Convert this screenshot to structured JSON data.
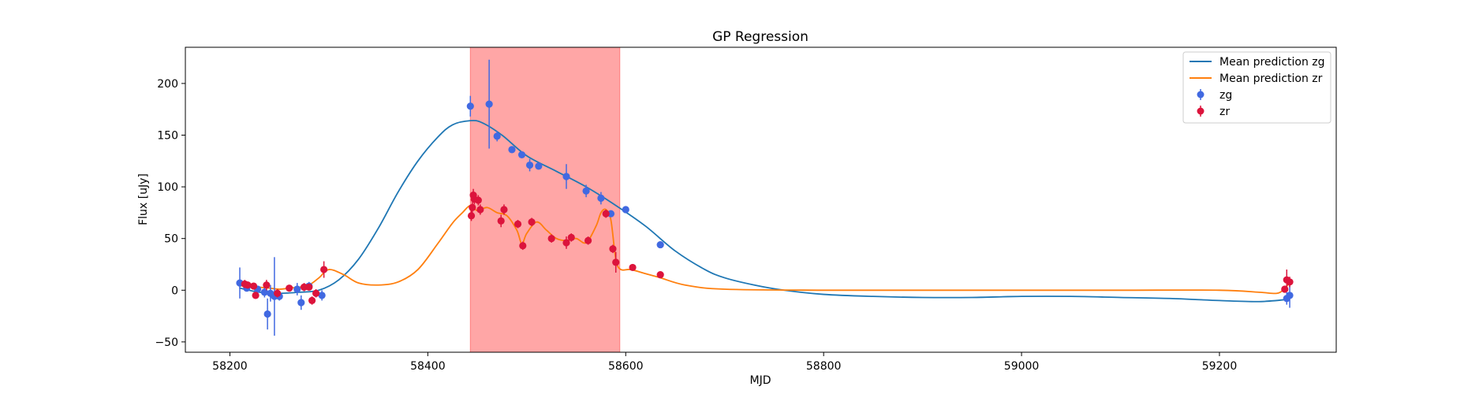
{
  "chart_data": {
    "type": "scatter",
    "title": "GP Regression",
    "xlabel": "MJD",
    "ylabel": "Flux [uJy]",
    "xlim": [
      58155,
      59318
    ],
    "ylim": [
      -60,
      235
    ],
    "xticks": [
      58200,
      58400,
      58600,
      58800,
      59000,
      59200
    ],
    "yticks": [
      -50,
      0,
      50,
      100,
      150,
      200
    ],
    "grid": false,
    "legend_position": "top-right",
    "shaded_region": {
      "x_start": 58443,
      "x_end": 58594,
      "color": "#ffa6a6"
    },
    "legend": {
      "mean_zg": "Mean prediction zg",
      "mean_zr": "Mean prediction zr",
      "zg": "zg",
      "zr": "zr"
    },
    "series": [
      {
        "name": "Mean prediction zg",
        "kind": "line",
        "color": "#1f77b4",
        "x": [
          58210,
          58230,
          58250,
          58270,
          58290,
          58310,
          58330,
          58350,
          58370,
          58390,
          58410,
          58425,
          58443,
          58455,
          58475,
          58500,
          58530,
          58560,
          58590,
          58620,
          58650,
          58680,
          58700,
          58730,
          58760,
          58800,
          58850,
          58900,
          58950,
          59000,
          59050,
          59100,
          59150,
          59200,
          59240,
          59268
        ],
        "y": [
          2,
          -2,
          -3,
          -2,
          0,
          10,
          30,
          60,
          95,
          125,
          148,
          160,
          164,
          162,
          150,
          130,
          115,
          100,
          82,
          62,
          38,
          20,
          12,
          5,
          0,
          -4,
          -6,
          -7,
          -7,
          -6,
          -6,
          -7,
          -8,
          -10,
          -11,
          -9
        ]
      },
      {
        "name": "Mean prediction zr",
        "kind": "line",
        "color": "#ff7f0e",
        "x": [
          58210,
          58220,
          58230,
          58240,
          58250,
          58260,
          58270,
          58280,
          58290,
          58300,
          58315,
          58330,
          58350,
          58370,
          58390,
          58410,
          58425,
          58435,
          58443,
          58450,
          58460,
          58470,
          58480,
          58490,
          58495,
          58500,
          58510,
          58520,
          58530,
          58540,
          58550,
          58560,
          58570,
          58575,
          58580,
          58585,
          58590,
          58595,
          58605,
          58620,
          58635,
          58660,
          58700,
          58800,
          58900,
          59000,
          59100,
          59200,
          59240,
          59258,
          59265,
          59270
        ],
        "y": [
          4,
          5,
          3,
          2,
          1,
          2,
          3,
          5,
          12,
          20,
          15,
          7,
          5,
          8,
          20,
          45,
          65,
          75,
          82,
          77,
          80,
          75,
          72,
          58,
          45,
          55,
          66,
          58,
          50,
          48,
          50,
          46,
          62,
          75,
          78,
          68,
          30,
          20,
          20,
          16,
          12,
          5,
          1,
          0,
          0,
          0,
          0,
          0,
          -2,
          -3,
          1,
          6
        ]
      },
      {
        "name": "zg",
        "kind": "points",
        "color": "#4169e1",
        "x": [
          58210,
          58217,
          58228,
          58235,
          58238,
          58241,
          58245,
          58250,
          58268,
          58272,
          58280,
          58293,
          58443,
          58462,
          58470,
          58485,
          58495,
          58503,
          58512,
          58540,
          58560,
          58575,
          58585,
          58600,
          58635,
          59268,
          59271
        ],
        "y": [
          7,
          2,
          1,
          -2,
          -23,
          -3,
          -6,
          -6,
          1,
          -12,
          4,
          -5,
          178,
          180,
          149,
          136,
          131,
          121,
          120,
          110,
          96,
          89,
          74,
          78,
          44,
          -8,
          -5
        ],
        "yerr": [
          15,
          3,
          3,
          5,
          15,
          8,
          38,
          4,
          6,
          7,
          4,
          5,
          10,
          43,
          5,
          3,
          3,
          6,
          3,
          12,
          6,
          6,
          3,
          3,
          3,
          6,
          12
        ]
      },
      {
        "name": "zr",
        "kind": "points",
        "color": "#dc143c",
        "x": [
          58215,
          58218,
          58224,
          58226,
          58237,
          58248,
          58260,
          58275,
          58280,
          58283,
          58287,
          58295,
          58444,
          58445,
          58446,
          58447,
          58451,
          58453,
          58474,
          58477,
          58491,
          58496,
          58505,
          58525,
          58540,
          58545,
          58562,
          58580,
          58587,
          58590,
          58607,
          58635,
          59266,
          59268,
          59271
        ],
        "y": [
          6,
          5,
          4,
          -5,
          5,
          -3,
          2,
          3,
          3,
          -10,
          -3,
          20,
          72,
          80,
          92,
          88,
          87,
          78,
          67,
          78,
          64,
          43,
          66,
          50,
          46,
          51,
          48,
          74,
          40,
          27,
          22,
          15,
          1,
          10,
          8
        ],
        "yerr": [
          4,
          3,
          3,
          3,
          5,
          4,
          3,
          4,
          3,
          4,
          4,
          8,
          5,
          5,
          6,
          5,
          5,
          5,
          6,
          5,
          4,
          4,
          4,
          4,
          6,
          4,
          4,
          4,
          4,
          10,
          3,
          3,
          3,
          10,
          5
        ]
      }
    ]
  }
}
